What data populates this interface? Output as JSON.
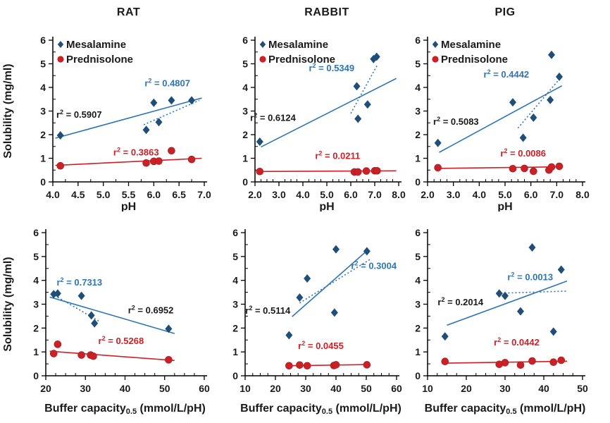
{
  "figure": {
    "legend": {
      "items": [
        {
          "label": "Mesalamine",
          "marker": "diamond"
        },
        {
          "label": "Prednisolone",
          "marker": "circle"
        }
      ]
    },
    "colors": {
      "mesalamine_point": "#1F4E79",
      "mesalamine_line": "#2E75B6",
      "prednisolone_point": "#CB2026",
      "prednisolone_line": "#D02026",
      "black_text": "#1A1A1A",
      "axis": "#000000"
    }
  },
  "chart_data": [
    {
      "type": "scatter",
      "title": "RAT",
      "show_legend": true,
      "xlabel": {
        "text": "pH"
      },
      "ylabel": "Solubility (mg/ml)",
      "xlim": [
        4.0,
        7.0
      ],
      "x_minor_step": 0.25,
      "xticks": [
        {
          "v": 4.0,
          "l": "4.0"
        },
        {
          "v": 4.5,
          "l": "4.5"
        },
        {
          "v": 5.0,
          "l": "5.0"
        },
        {
          "v": 5.5,
          "l": "5.5"
        },
        {
          "v": 6.0,
          "l": "6.0"
        },
        {
          "v": 6.5,
          "l": "6.5"
        },
        {
          "v": 7.0,
          "l": "7.0"
        }
      ],
      "ylim": [
        0,
        6
      ],
      "yticks": [
        0,
        1,
        2,
        3,
        4,
        5,
        6
      ],
      "y_minor_step": 0.5,
      "series": [
        {
          "name": "Mesalamine",
          "marker": "diamond",
          "points": [
            [
              4.15,
              1.97
            ],
            [
              5.85,
              2.2
            ],
            [
              6.0,
              3.35
            ],
            [
              6.1,
              2.53
            ],
            [
              6.35,
              3.45
            ],
            [
              6.75,
              3.45
            ]
          ],
          "trends": [
            {
              "style": "solid",
              "x1": 4.05,
              "y1": 1.85,
              "x2": 6.95,
              "y2": 3.55
            },
            {
              "style": "dotted",
              "x1": 5.8,
              "y1": 2.42,
              "x2": 6.9,
              "y2": 3.45
            }
          ]
        },
        {
          "name": "Prednisolone",
          "marker": "circle",
          "points": [
            [
              4.15,
              0.68
            ],
            [
              5.85,
              0.8
            ],
            [
              6.0,
              0.87
            ],
            [
              6.1,
              0.88
            ],
            [
              6.35,
              1.32
            ],
            [
              6.75,
              0.95
            ]
          ],
          "trends": [
            {
              "style": "solid",
              "x1": 4.05,
              "y1": 0.7,
              "x2": 6.95,
              "y2": 1.0
            }
          ]
        }
      ],
      "annotations": [
        {
          "r2": "0.4807",
          "color": "#2E75B6",
          "x": 6.27,
          "y": 4.05
        },
        {
          "r2": "0.5907",
          "color": "#1A1A1A",
          "x": 4.52,
          "y": 2.72
        },
        {
          "r2": "0.3863",
          "color": "#D02026",
          "x": 5.65,
          "y": 1.12
        }
      ]
    },
    {
      "type": "scatter",
      "title": "RABBIT",
      "show_legend": true,
      "xlabel": {
        "text": "pH"
      },
      "ylabel": "",
      "xlim": [
        2.0,
        8.0
      ],
      "x_minor_step": 0.25,
      "xticks": [
        {
          "v": 2.0,
          "l": "2.0"
        },
        {
          "v": 3.0,
          "l": "3.0"
        },
        {
          "v": 4.0,
          "l": "4.0"
        },
        {
          "v": 5.0,
          "l": "5.0"
        },
        {
          "v": 6.0,
          "l": "6.0"
        },
        {
          "v": 7.0,
          "l": "7.0"
        },
        {
          "v": 8.0,
          "l": "8.0"
        }
      ],
      "ylim": [
        0,
        6
      ],
      "yticks": [
        0,
        1,
        2,
        3,
        4,
        5,
        6
      ],
      "y_minor_step": 0.5,
      "series": [
        {
          "name": "Mesalamine",
          "marker": "diamond",
          "points": [
            [
              2.2,
              1.7
            ],
            [
              6.25,
              4.05
            ],
            [
              6.3,
              2.67
            ],
            [
              6.7,
              3.28
            ],
            [
              6.95,
              5.2
            ],
            [
              7.08,
              5.3
            ]
          ],
          "trends": [
            {
              "style": "solid",
              "x1": 2.25,
              "y1": 1.48,
              "x2": 7.9,
              "y2": 4.38
            },
            {
              "style": "dotted",
              "x1": 6.0,
              "y1": 2.9,
              "x2": 7.12,
              "y2": 4.97
            }
          ]
        },
        {
          "name": "Prednisolone",
          "marker": "circle",
          "points": [
            [
              2.2,
              0.44
            ],
            [
              6.15,
              0.42
            ],
            [
              6.3,
              0.42
            ],
            [
              6.65,
              0.46
            ],
            [
              7.0,
              0.47
            ],
            [
              7.1,
              0.47
            ]
          ],
          "trends": [
            {
              "style": "solid",
              "x1": 2.25,
              "y1": 0.44,
              "x2": 7.9,
              "y2": 0.47
            }
          ]
        }
      ],
      "annotations": [
        {
          "r2": "0.5349",
          "color": "#2E75B6",
          "x": 5.2,
          "y": 4.68
        },
        {
          "r2": "0.6124",
          "color": "#1A1A1A",
          "x": 2.75,
          "y": 2.58
        },
        {
          "r2": "0.0211",
          "color": "#D02026",
          "x": 5.45,
          "y": 0.97
        }
      ]
    },
    {
      "type": "scatter",
      "title": "PIG",
      "show_legend": true,
      "xlabel": {
        "text": "pH"
      },
      "ylabel": "",
      "xlim": [
        2.0,
        8.0
      ],
      "x_minor_step": 0.25,
      "xticks": [
        {
          "v": 2.0,
          "l": "2.0"
        },
        {
          "v": 3.0,
          "l": "3.0"
        },
        {
          "v": 4.0,
          "l": "4.0"
        },
        {
          "v": 5.0,
          "l": "5.0"
        },
        {
          "v": 6.0,
          "l": "6.0"
        },
        {
          "v": 7.0,
          "l": "7.0"
        },
        {
          "v": 8.0,
          "l": "8.0"
        }
      ],
      "ylim": [
        0,
        6
      ],
      "yticks": [
        0,
        1,
        2,
        3,
        4,
        5,
        6
      ],
      "y_minor_step": 0.5,
      "series": [
        {
          "name": "Mesalamine",
          "marker": "diamond",
          "points": [
            [
              2.4,
              1.65
            ],
            [
              5.3,
              3.37
            ],
            [
              5.7,
              1.87
            ],
            [
              6.1,
              2.72
            ],
            [
              6.75,
              3.47
            ],
            [
              6.8,
              5.38
            ],
            [
              7.1,
              4.45
            ]
          ],
          "trends": [
            {
              "style": "solid",
              "x1": 2.45,
              "y1": 1.25,
              "x2": 7.2,
              "y2": 4.07
            },
            {
              "style": "dotted",
              "x1": 5.5,
              "y1": 2.28,
              "x2": 7.08,
              "y2": 4.32
            }
          ]
        },
        {
          "name": "Prednisolone",
          "marker": "circle",
          "points": [
            [
              2.4,
              0.6
            ],
            [
              5.3,
              0.56
            ],
            [
              5.75,
              0.57
            ],
            [
              6.1,
              0.45
            ],
            [
              6.7,
              0.5
            ],
            [
              6.8,
              0.63
            ],
            [
              7.1,
              0.66
            ]
          ],
          "trends": [
            {
              "style": "solid",
              "x1": 2.4,
              "y1": 0.57,
              "x2": 7.2,
              "y2": 0.64
            }
          ]
        }
      ],
      "annotations": [
        {
          "r2": "0.4442",
          "color": "#2E75B6",
          "x": 5.05,
          "y": 4.42
        },
        {
          "r2": "0.5083",
          "color": "#1A1A1A",
          "x": 3.1,
          "y": 2.42
        },
        {
          "r2": "0.0086",
          "color": "#D02026",
          "x": 5.7,
          "y": 1.08
        }
      ]
    },
    {
      "type": "scatter",
      "title": "",
      "show_legend": false,
      "xlabel": {
        "pre": "Buffer capacity",
        "sub": "0.5",
        "post": " (mmol/L/pH)"
      },
      "ylabel": "Solubility (mg/ml)",
      "xlim": [
        20,
        60
      ],
      "x_minor_step": 2.5,
      "xticks": [
        {
          "v": 20,
          "l": "20"
        },
        {
          "v": 30,
          "l": "30"
        },
        {
          "v": 40,
          "l": "40"
        },
        {
          "v": 50,
          "l": "50"
        },
        {
          "v": 60,
          "l": "60"
        }
      ],
      "ylim": [
        0,
        6
      ],
      "yticks": [
        0,
        1,
        2,
        3,
        4,
        5,
        6
      ],
      "y_minor_step": 0.5,
      "series": [
        {
          "name": "Mesalamine",
          "marker": "diamond",
          "points": [
            [
              22,
              3.42
            ],
            [
              23,
              3.45
            ],
            [
              29,
              3.35
            ],
            [
              31.5,
              2.53
            ],
            [
              32.3,
              2.2
            ],
            [
              51,
              1.97
            ]
          ],
          "trends": [
            {
              "style": "solid",
              "x1": 21,
              "y1": 3.3,
              "x2": 52.5,
              "y2": 1.77
            },
            {
              "style": "dotted",
              "x1": 21.5,
              "y1": 3.44,
              "x2": 33.5,
              "y2": 2.28
            }
          ]
        },
        {
          "name": "Prednisolone",
          "marker": "circle",
          "points": [
            [
              22,
              0.93
            ],
            [
              23,
              1.32
            ],
            [
              29,
              0.87
            ],
            [
              31.3,
              0.87
            ],
            [
              32,
              0.82
            ],
            [
              51,
              0.67
            ]
          ],
          "trends": [
            {
              "style": "solid",
              "x1": 21,
              "y1": 1.03,
              "x2": 52.5,
              "y2": 0.64
            }
          ]
        }
      ],
      "annotations": [
        {
          "r2": "0.7313",
          "color": "#2E75B6",
          "x": 28.5,
          "y": 3.78
        },
        {
          "r2": "0.6952",
          "color": "#1A1A1A",
          "x": 46.5,
          "y": 2.62
        },
        {
          "r2": "0.5268",
          "color": "#D02026",
          "x": 39,
          "y": 1.33
        }
      ]
    },
    {
      "type": "scatter",
      "title": "",
      "show_legend": false,
      "xlabel": {
        "pre": "Buffer capacity",
        "sub": "0.5",
        "post": " (mmol/L/pH)"
      },
      "ylabel": "",
      "xlim": [
        10,
        60
      ],
      "x_minor_step": 2.5,
      "xticks": [
        {
          "v": 10,
          "l": "10"
        },
        {
          "v": 20,
          "l": "20"
        },
        {
          "v": 30,
          "l": "30"
        },
        {
          "v": 40,
          "l": "40"
        },
        {
          "v": 50,
          "l": "50"
        },
        {
          "v": 60,
          "l": "60"
        }
      ],
      "ylim": [
        0,
        6
      ],
      "yticks": [
        0,
        1,
        2,
        3,
        4,
        5,
        6
      ],
      "y_minor_step": 0.5,
      "series": [
        {
          "name": "Mesalamine",
          "marker": "diamond",
          "points": [
            [
              24.5,
              1.7
            ],
            [
              28,
              3.28
            ],
            [
              30.5,
              4.08
            ],
            [
              39.5,
              2.65
            ],
            [
              40,
              5.3
            ],
            [
              50.2,
              5.22
            ]
          ],
          "trends": [
            {
              "style": "solid",
              "x1": 25.5,
              "y1": 2.48,
              "x2": 50.3,
              "y2": 5.25
            },
            {
              "style": "dotted",
              "x1": 28,
              "y1": 3.05,
              "x2": 51.5,
              "y2": 4.9
            }
          ]
        },
        {
          "name": "Prednisolone",
          "marker": "circle",
          "points": [
            [
              24.5,
              0.42
            ],
            [
              28,
              0.45
            ],
            [
              30.5,
              0.42
            ],
            [
              39.3,
              0.43
            ],
            [
              40,
              0.46
            ],
            [
              50.2,
              0.46
            ]
          ],
          "trends": [
            {
              "style": "solid",
              "x1": 24.5,
              "y1": 0.42,
              "x2": 50.5,
              "y2": 0.47
            }
          ]
        }
      ],
      "annotations": [
        {
          "r2": "0.3004",
          "color": "#2E75B6",
          "x": 52.5,
          "y": 4.48
        },
        {
          "r2": "0.5114",
          "color": "#1A1A1A",
          "x": 17.5,
          "y": 2.6
        },
        {
          "r2": "0.0455",
          "color": "#D02026",
          "x": 35,
          "y": 1.13
        }
      ]
    },
    {
      "type": "scatter",
      "title": "",
      "show_legend": false,
      "xlabel": {
        "pre": "Buffer capacity",
        "sub": "0.5",
        "post": " (mmol/L/pH)"
      },
      "ylabel": "",
      "xlim": [
        10,
        50
      ],
      "x_minor_step": 2.5,
      "xticks": [
        {
          "v": 10,
          "l": "10"
        },
        {
          "v": 20,
          "l": "20"
        },
        {
          "v": 30,
          "l": "30"
        },
        {
          "v": 40,
          "l": "40"
        },
        {
          "v": 50,
          "l": "50"
        }
      ],
      "ylim": [
        0,
        6
      ],
      "yticks": [
        0,
        1,
        2,
        3,
        4,
        5,
        6
      ],
      "y_minor_step": 0.5,
      "series": [
        {
          "name": "Mesalamine",
          "marker": "diamond",
          "points": [
            [
              14.5,
              1.65
            ],
            [
              28.5,
              3.45
            ],
            [
              30,
              3.35
            ],
            [
              34,
              2.7
            ],
            [
              37,
              5.38
            ],
            [
              42.5,
              1.85
            ],
            [
              44.5,
              4.45
            ]
          ],
          "trends": [
            {
              "style": "solid",
              "x1": 15,
              "y1": 2.12,
              "x2": 46,
              "y2": 3.97
            },
            {
              "style": "dotted",
              "x1": 29,
              "y1": 3.46,
              "x2": 46,
              "y2": 3.55
            }
          ]
        },
        {
          "name": "Prednisolone",
          "marker": "circle",
          "points": [
            [
              14.5,
              0.6
            ],
            [
              28.5,
              0.48
            ],
            [
              30,
              0.55
            ],
            [
              34,
              0.45
            ],
            [
              37,
              0.62
            ],
            [
              42.5,
              0.57
            ],
            [
              44.5,
              0.65
            ]
          ],
          "trends": [
            {
              "style": "solid",
              "x1": 15,
              "y1": 0.53,
              "x2": 46,
              "y2": 0.61
            }
          ]
        }
      ],
      "annotations": [
        {
          "r2": "0.0013",
          "color": "#2E75B6",
          "x": 36.5,
          "y": 4.0
        },
        {
          "r2": "0.2014",
          "color": "#1A1A1A",
          "x": 18.5,
          "y": 2.95
        },
        {
          "r2": "0.0442",
          "color": "#D02026",
          "x": 33,
          "y": 1.27
        }
      ]
    }
  ]
}
